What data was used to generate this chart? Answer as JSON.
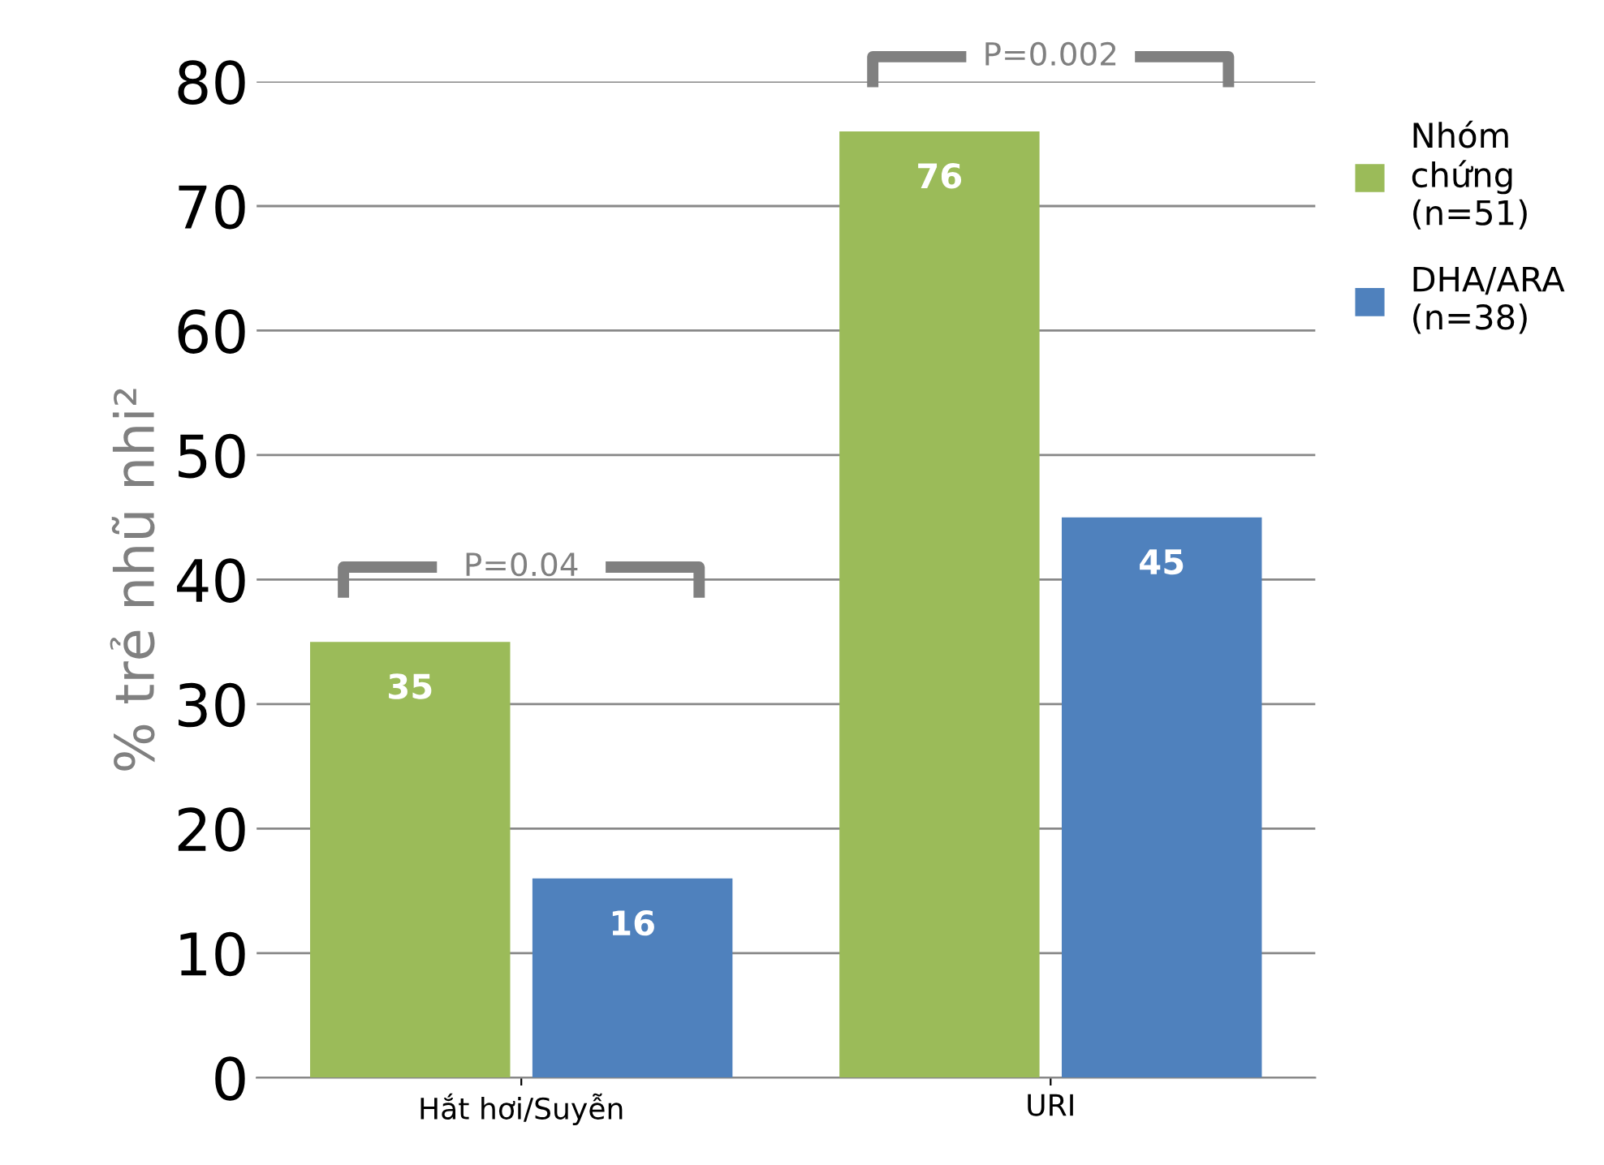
{
  "chart_data": {
    "type": "bar",
    "ylabel": "% trẻ nhũ nhi²",
    "categories": [
      "Hắt hơi/Suyễn",
      "URI"
    ],
    "series": [
      {
        "name": "Nhóm\nchứng\n(n=51)",
        "color": "#9bbb59",
        "values": [
          35,
          76
        ]
      },
      {
        "name": "DHA/ARA\n(n=38)",
        "color": "#4f81bd",
        "values": [
          16,
          45
        ]
      }
    ],
    "ylim": [
      0,
      80
    ],
    "yticks": [
      0,
      10,
      20,
      30,
      40,
      50,
      60,
      70,
      80
    ],
    "grid": "y",
    "legend": "right",
    "data_labels": true,
    "annotations": [
      "P=0.04",
      "P=0.002"
    ]
  }
}
